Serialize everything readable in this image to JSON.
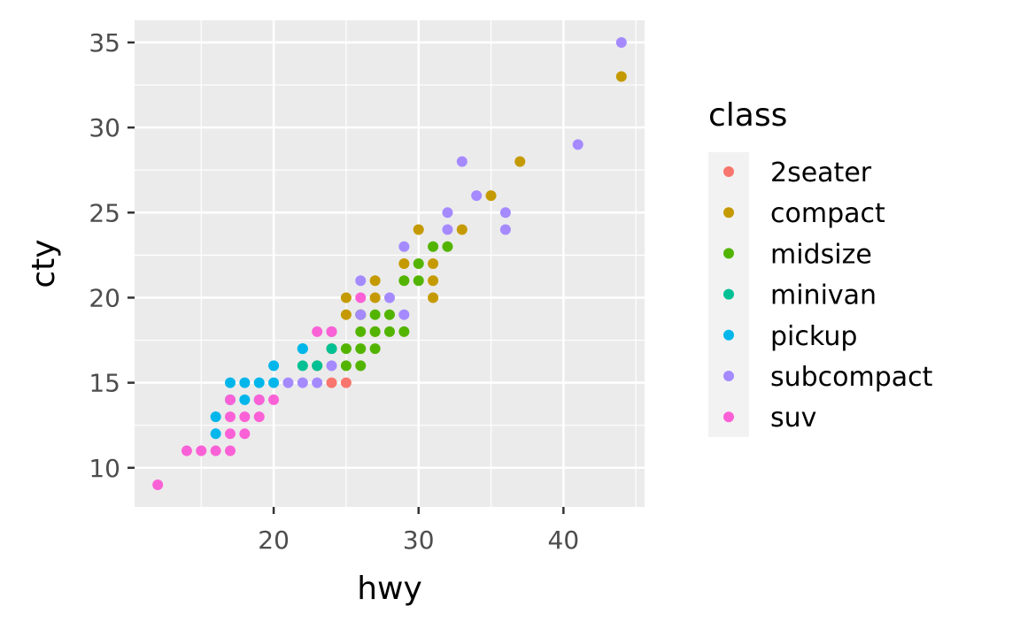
{
  "chart_data": {
    "type": "scatter",
    "title": "",
    "xlabel": "hwy",
    "ylabel": "cty",
    "xlim": [
      10.4,
      45.6
    ],
    "ylim": [
      7.7,
      36.3
    ],
    "x_ticks": [
      20,
      30,
      40
    ],
    "y_ticks": [
      10,
      15,
      20,
      25,
      30,
      35
    ],
    "x_tick_labels": [
      "20",
      "30",
      "40"
    ],
    "y_tick_labels": [
      "10",
      "15",
      "20",
      "25",
      "30",
      "35"
    ],
    "grid": true,
    "legend": {
      "title": "class",
      "placement": "right"
    },
    "series": [
      {
        "name": "2seater",
        "color": "#F8766D",
        "points": [
          [
            24,
            15
          ],
          [
            25,
            15
          ]
        ]
      },
      {
        "name": "compact",
        "color": "#C49A00",
        "points": [
          [
            44,
            33
          ],
          [
            37,
            28
          ],
          [
            35,
            26
          ],
          [
            33,
            24
          ],
          [
            30,
            24
          ],
          [
            29,
            22
          ],
          [
            31,
            22
          ],
          [
            31,
            21
          ],
          [
            27,
            21
          ],
          [
            31,
            20
          ],
          [
            25,
            20
          ],
          [
            27,
            20
          ],
          [
            25,
            19
          ],
          [
            26,
            19
          ],
          [
            24,
            18
          ],
          [
            27,
            18
          ],
          [
            24,
            17
          ],
          [
            23,
            16
          ]
        ]
      },
      {
        "name": "midsize",
        "color": "#53B400",
        "points": [
          [
            31,
            23
          ],
          [
            32,
            23
          ],
          [
            30,
            22
          ],
          [
            29,
            21
          ],
          [
            30,
            21
          ],
          [
            26,
            19
          ],
          [
            27,
            19
          ],
          [
            28,
            19
          ],
          [
            26,
            18
          ],
          [
            27,
            18
          ],
          [
            28,
            18
          ],
          [
            29,
            18
          ],
          [
            25,
            17
          ],
          [
            26,
            17
          ],
          [
            27,
            17
          ],
          [
            25,
            16
          ],
          [
            26,
            16
          ]
        ]
      },
      {
        "name": "minivan",
        "color": "#00C094",
        "points": [
          [
            22,
            17
          ],
          [
            22,
            16
          ],
          [
            24,
            17
          ],
          [
            23,
            16
          ]
        ]
      },
      {
        "name": "pickup",
        "color": "#00B6EB",
        "points": [
          [
            22,
            17
          ],
          [
            20,
            16
          ],
          [
            17,
            15
          ],
          [
            18,
            15
          ],
          [
            19,
            15
          ],
          [
            20,
            15
          ],
          [
            17,
            14
          ],
          [
            18,
            14
          ],
          [
            19,
            14
          ],
          [
            16,
            13
          ],
          [
            16,
            12
          ]
        ]
      },
      {
        "name": "subcompact",
        "color": "#A58AFF",
        "points": [
          [
            44,
            35
          ],
          [
            41,
            29
          ],
          [
            33,
            28
          ],
          [
            34,
            26
          ],
          [
            32,
            25
          ],
          [
            36,
            25
          ],
          [
            32,
            24
          ],
          [
            36,
            24
          ],
          [
            29,
            23
          ],
          [
            26,
            21
          ],
          [
            28,
            20
          ],
          [
            26,
            19
          ],
          [
            29,
            19
          ],
          [
            24,
            18
          ],
          [
            24,
            16
          ],
          [
            21,
            15
          ],
          [
            22,
            15
          ],
          [
            23,
            15
          ]
        ]
      },
      {
        "name": "suv",
        "color": "#FB61D7",
        "points": [
          [
            26,
            20
          ],
          [
            23,
            18
          ],
          [
            24,
            18
          ],
          [
            17,
            14
          ],
          [
            19,
            14
          ],
          [
            20,
            14
          ],
          [
            17,
            13
          ],
          [
            18,
            13
          ],
          [
            19,
            13
          ],
          [
            17,
            12
          ],
          [
            18,
            12
          ],
          [
            14,
            11
          ],
          [
            15,
            11
          ],
          [
            16,
            11
          ],
          [
            17,
            11
          ],
          [
            12,
            9
          ]
        ]
      }
    ]
  }
}
